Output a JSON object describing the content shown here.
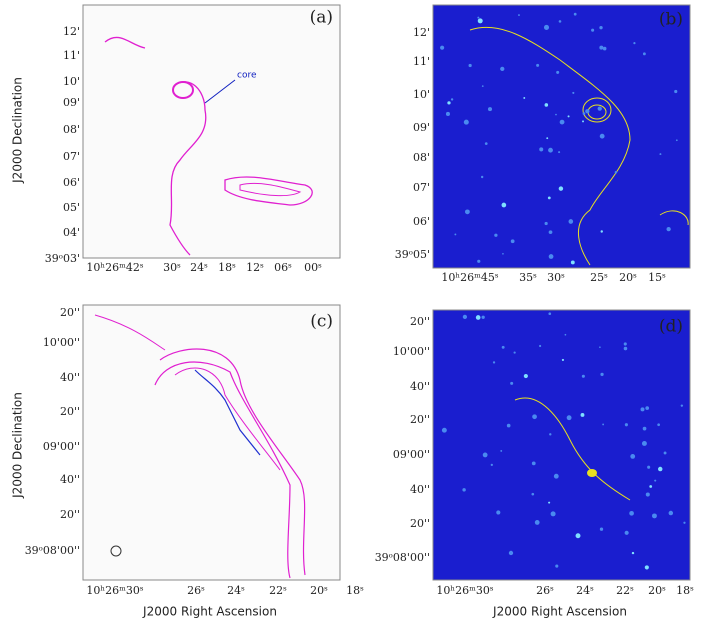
{
  "panels": [
    {
      "label": "(a)",
      "y_axis_title": "J2000 Declination",
      "annotation": "core",
      "y_ticks": [
        "12'",
        "11'",
        "10'",
        "09'",
        "08'",
        "07'",
        "06'",
        "05'",
        "04'",
        "39ᵒ03'"
      ],
      "x_ticks": [
        "10ʰ26ᵐ42ˢ",
        "30ˢ",
        "24ˢ",
        "18ˢ",
        "12ˢ",
        "06ˢ",
        "00ˢ"
      ]
    },
    {
      "label": "(b)",
      "y_ticks": [
        "12'",
        "11'",
        "10'",
        "09'",
        "08'",
        "07'",
        "06'",
        "39ᵒ05'"
      ],
      "x_ticks": [
        "10ʰ26ᵐ45ˢ",
        "35ˢ",
        "30ˢ",
        "25ˢ",
        "20ˢ",
        "15ˢ"
      ]
    },
    {
      "label": "(c)",
      "y_axis_title": "J2000 Declination",
      "x_axis_title": "J2000 Right Ascension",
      "y_ticks": [
        "20''",
        "10'00''",
        "40''",
        "20''",
        "09'00''",
        "40''",
        "20''",
        "39ᵒ08'00''"
      ],
      "x_ticks": [
        "10ʰ26ᵐ30ˢ",
        "26ˢ",
        "24ˢ",
        "22ˢ",
        "20ˢ",
        "18ˢ"
      ]
    },
    {
      "label": "(d)",
      "x_axis_title": "J2000 Right Ascension",
      "y_ticks": [
        "20''",
        "10'00''",
        "40''",
        "20''",
        "09'00''",
        "40''",
        "20''",
        "39ᵒ08'00''"
      ],
      "x_ticks": [
        "10ʰ26ᵐ30ˢ",
        "26ˢ",
        "24ˢ",
        "22ˢ",
        "20ˢ",
        "18ˢ"
      ]
    }
  ]
}
